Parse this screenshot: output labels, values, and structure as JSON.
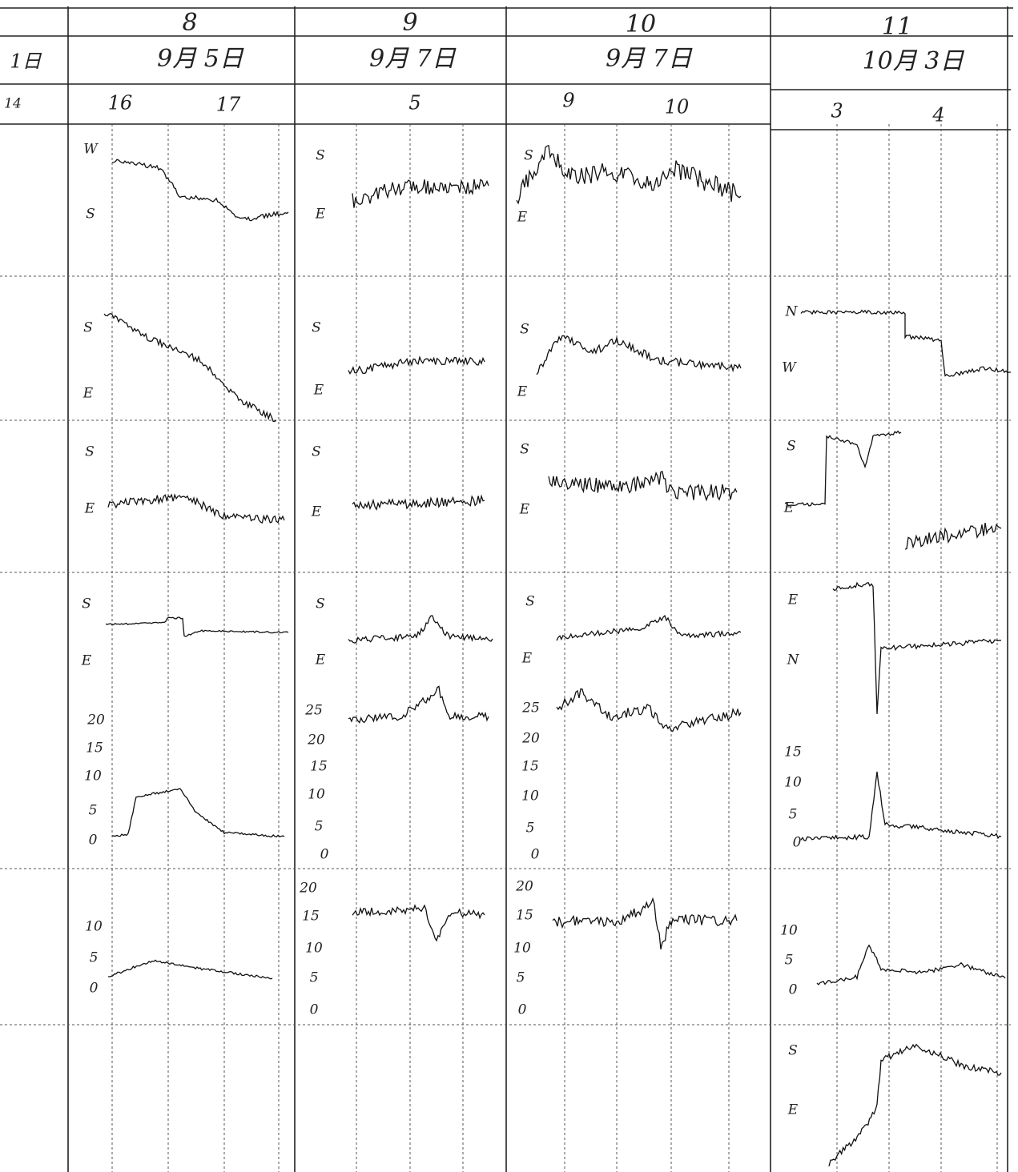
{
  "left": {
    "date": "1日",
    "hour": "14"
  },
  "columns": [
    {
      "number": "8",
      "date": "9月 5日",
      "hours": [
        "16",
        "17"
      ],
      "panels": [
        [
          "W",
          "S"
        ],
        [
          "S",
          "E"
        ],
        [
          "S",
          "E"
        ],
        [
          "S",
          "E",
          "20",
          "15",
          "10",
          "5",
          "0"
        ],
        [
          "10",
          "5",
          "0"
        ]
      ]
    },
    {
      "number": "9",
      "date": "9月 7日",
      "hours": [
        "5"
      ],
      "panels": [
        [
          "S",
          "E"
        ],
        [
          "S",
          "E"
        ],
        [
          "S",
          "E"
        ],
        [
          "S",
          "E",
          "25",
          "20",
          "15",
          "10",
          "5",
          "0"
        ],
        [
          "20",
          "15",
          "10",
          "5",
          "0"
        ]
      ]
    },
    {
      "number": "10",
      "date": "9月 7日",
      "hours": [
        "9",
        "10"
      ],
      "panels": [
        [
          "S",
          "E"
        ],
        [
          "S",
          "E"
        ],
        [
          "S",
          "E"
        ],
        [
          "S",
          "E",
          "25",
          "20",
          "15",
          "10",
          "5",
          "0"
        ],
        [
          "20",
          "15",
          "10",
          "5",
          "0"
        ]
      ]
    },
    {
      "number": "11",
      "date": "10月 3日",
      "hours": [
        "3",
        "4"
      ],
      "panels": [
        [
          "N",
          "W"
        ],
        [
          "S",
          "E"
        ],
        [
          "E",
          "N",
          "15",
          "10",
          "5",
          "0"
        ],
        [
          "10",
          "5",
          "0"
        ],
        [
          "S",
          "E"
        ]
      ]
    }
  ]
}
